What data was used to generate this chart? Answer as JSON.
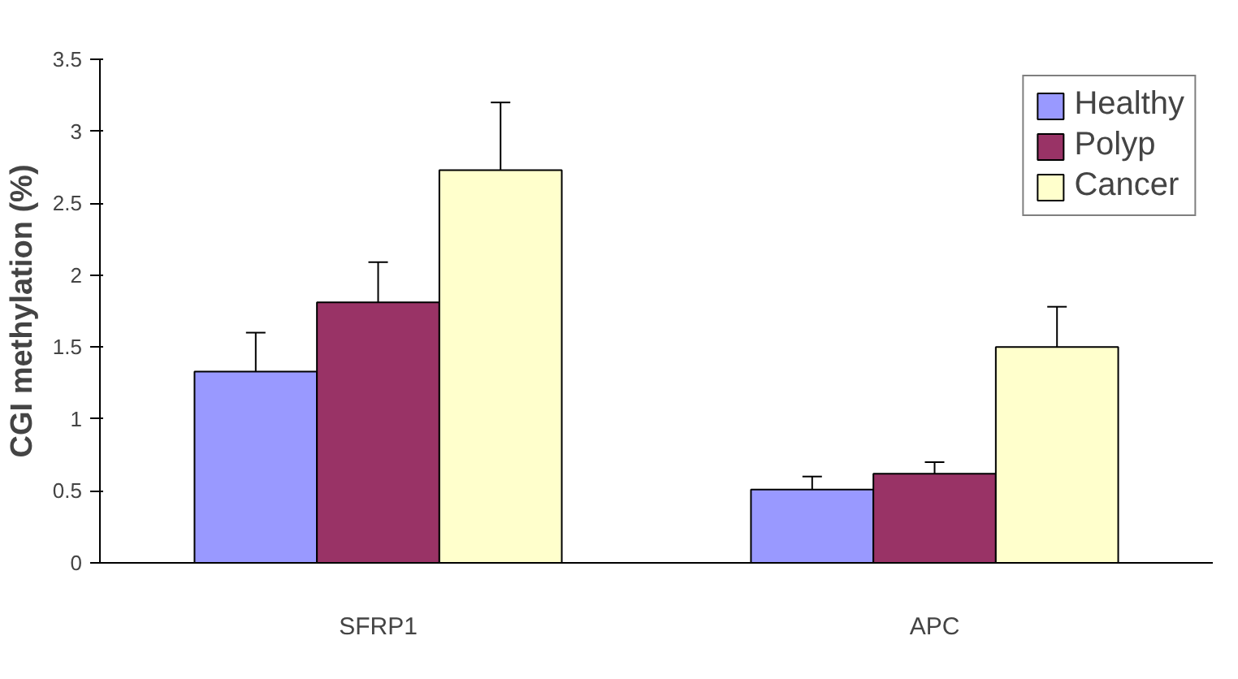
{
  "chart_data": {
    "type": "bar",
    "ylabel": "CGI methylation (%)",
    "categories": [
      "SFRP1",
      "APC"
    ],
    "series": [
      {
        "name": "Healthy",
        "color": "#9999ff",
        "values": [
          1.33,
          0.51
        ],
        "errors": [
          [
            1.33,
            1.6
          ],
          [
            0.51,
            0.6
          ]
        ]
      },
      {
        "name": "Polyp",
        "color": "#993366",
        "values": [
          1.81,
          0.62
        ],
        "errors": [
          [
            1.81,
            2.09
          ],
          [
            0.62,
            0.7
          ]
        ]
      },
      {
        "name": "Cancer",
        "color": "#ffffcc",
        "values": [
          2.73,
          1.5
        ],
        "errors": [
          [
            2.73,
            3.2
          ],
          [
            1.5,
            1.78
          ]
        ]
      }
    ],
    "ylim": [
      0,
      3.5
    ],
    "yticks": [
      0,
      0.5,
      1,
      1.5,
      2,
      2.5,
      3,
      3.5
    ],
    "grid": false,
    "legend": "top right"
  }
}
